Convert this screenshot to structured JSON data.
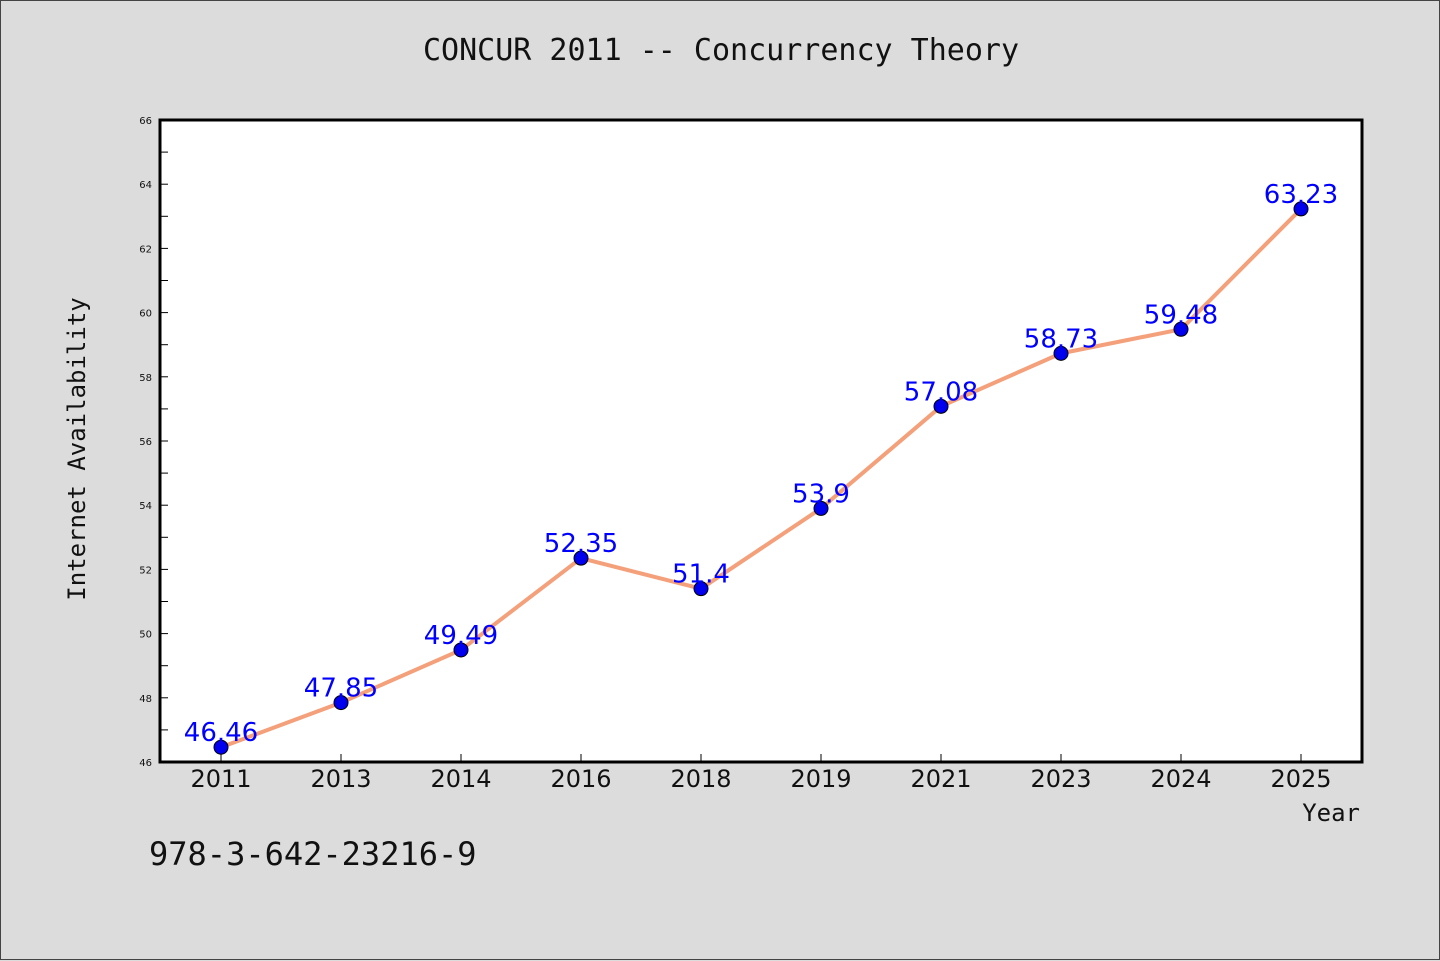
{
  "title": "CONCUR 2011 -- Concurrency Theory",
  "footer_text": "978-3-642-23216-9",
  "chart_data": {
    "type": "line",
    "title": "CONCUR 2011 -- Concurrency Theory",
    "xlabel": "Year",
    "ylabel": "Internet Availability",
    "categories": [
      "2011",
      "2013",
      "2014",
      "2016",
      "2018",
      "2019",
      "2021",
      "2023",
      "2024",
      "2025"
    ],
    "series": [
      {
        "values": [
          46.46,
          47.85,
          49.49,
          52.35,
          51.4,
          53.9,
          57.08,
          58.73,
          59.48,
          63.23
        ],
        "line_color": "#f4a07a",
        "marker_color": "#0000ee",
        "label_color": "#0000ff"
      }
    ],
    "data_labels": [
      "46.46",
      "47.85",
      "49.49",
      "52.35",
      "51.4",
      "53.9",
      "57.08",
      "58.73",
      "59.48",
      "63.23"
    ],
    "ylim": [
      46,
      66
    ],
    "yticks": [
      46,
      48,
      50,
      52,
      54,
      56,
      58,
      60,
      62,
      64,
      66
    ],
    "grid": false,
    "legend": "none"
  }
}
